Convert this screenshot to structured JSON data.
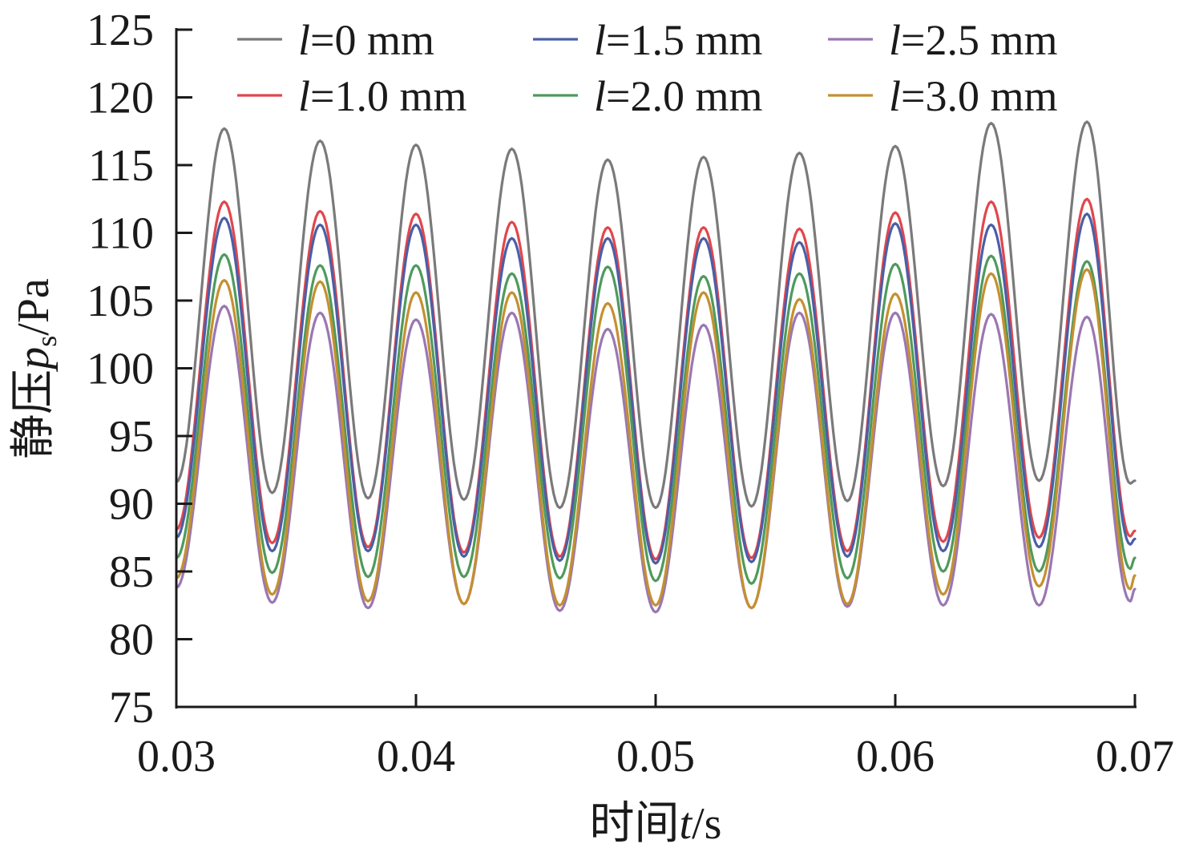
{
  "chart_data": {
    "type": "line",
    "title": "",
    "xlabel": "时间t/s",
    "xlabel_parts": {
      "prefix": "时间",
      "var": "t",
      "unit": "/s"
    },
    "ylabel": "静压ps/Pa",
    "ylabel_parts": {
      "prefix": "静压",
      "var": "p",
      "sub": "s",
      "unit": "/Pa"
    },
    "xlim": [
      0.03,
      0.07
    ],
    "ylim": [
      75,
      125
    ],
    "xticks": [
      0.03,
      0.04,
      0.05,
      0.06,
      0.07
    ],
    "xtick_labels": [
      "0.03",
      "0.04",
      "0.05",
      "0.06",
      "0.07"
    ],
    "yticks": [
      75,
      80,
      85,
      90,
      95,
      100,
      105,
      110,
      115,
      120,
      125
    ],
    "ytick_labels": [
      "75",
      "80",
      "85",
      "90",
      "95",
      "100",
      "105",
      "110",
      "115",
      "120",
      "125"
    ],
    "grid": false,
    "legend_position": "top",
    "x": [
      0.03,
      0.032,
      0.034,
      0.036,
      0.038,
      0.04,
      0.042,
      0.044,
      0.046,
      0.048,
      0.05,
      0.052,
      0.054,
      0.056,
      0.058,
      0.06,
      0.062,
      0.064,
      0.066,
      0.068,
      0.0698,
      0.07
    ],
    "series": [
      {
        "name": "l=0 mm",
        "var": "l",
        "label": "=0 mm",
        "color": "#7a7a7a",
        "values": [
          91.6,
          117.7,
          90.8,
          116.8,
          90.4,
          116.5,
          90.3,
          116.2,
          89.7,
          115.4,
          89.7,
          115.6,
          89.8,
          115.9,
          90.2,
          116.4,
          91.3,
          118.1,
          91.7,
          118.2,
          91.5,
          91.7
        ]
      },
      {
        "name": "l=1.0 mm",
        "var": "l",
        "label": "=1.0 mm",
        "color": "#e0474c",
        "values": [
          88.1,
          112.3,
          87.1,
          111.6,
          86.8,
          111.4,
          86.4,
          110.8,
          86.1,
          110.4,
          85.9,
          110.4,
          86.0,
          110.3,
          86.5,
          111.5,
          87.2,
          112.3,
          87.5,
          112.5,
          87.6,
          88.0
        ]
      },
      {
        "name": "l=1.5 mm",
        "var": "l",
        "label": "=1.5 mm",
        "color": "#4a5fa8",
        "values": [
          87.5,
          111.1,
          86.5,
          110.6,
          86.5,
          110.6,
          86.1,
          109.6,
          85.8,
          109.6,
          85.6,
          109.6,
          85.7,
          109.3,
          86.1,
          110.7,
          86.5,
          110.6,
          86.8,
          111.4,
          87.0,
          87.4
        ]
      },
      {
        "name": "l=2.0 mm",
        "var": "l",
        "label": "=2.0 mm",
        "color": "#4f9a5c",
        "values": [
          86.0,
          108.4,
          84.9,
          107.6,
          84.6,
          107.6,
          84.6,
          107.0,
          84.5,
          107.5,
          84.3,
          106.8,
          84.1,
          107.0,
          84.5,
          107.7,
          85.0,
          108.3,
          85.0,
          107.9,
          85.2,
          86.0
        ]
      },
      {
        "name": "l=2.5 mm",
        "var": "l",
        "label": "=2.5 mm",
        "color": "#9a77b3",
        "values": [
          83.8,
          104.6,
          82.7,
          104.1,
          82.3,
          103.6,
          82.6,
          104.1,
          82.1,
          102.9,
          82.0,
          103.2,
          82.3,
          104.1,
          82.4,
          104.1,
          82.5,
          104.0,
          82.5,
          103.8,
          82.8,
          83.7
        ]
      },
      {
        "name": "l=3.0 mm",
        "var": "l",
        "label": "=3.0 mm",
        "color": "#c49030",
        "values": [
          84.5,
          106.5,
          83.3,
          106.4,
          82.8,
          105.6,
          82.6,
          105.6,
          82.5,
          104.8,
          82.5,
          105.6,
          82.3,
          105.1,
          82.6,
          105.5,
          83.3,
          107.0,
          83.9,
          107.3,
          83.7,
          84.7
        ]
      }
    ],
    "legend_order": [
      0,
      2,
      4,
      1,
      3,
      5
    ]
  }
}
